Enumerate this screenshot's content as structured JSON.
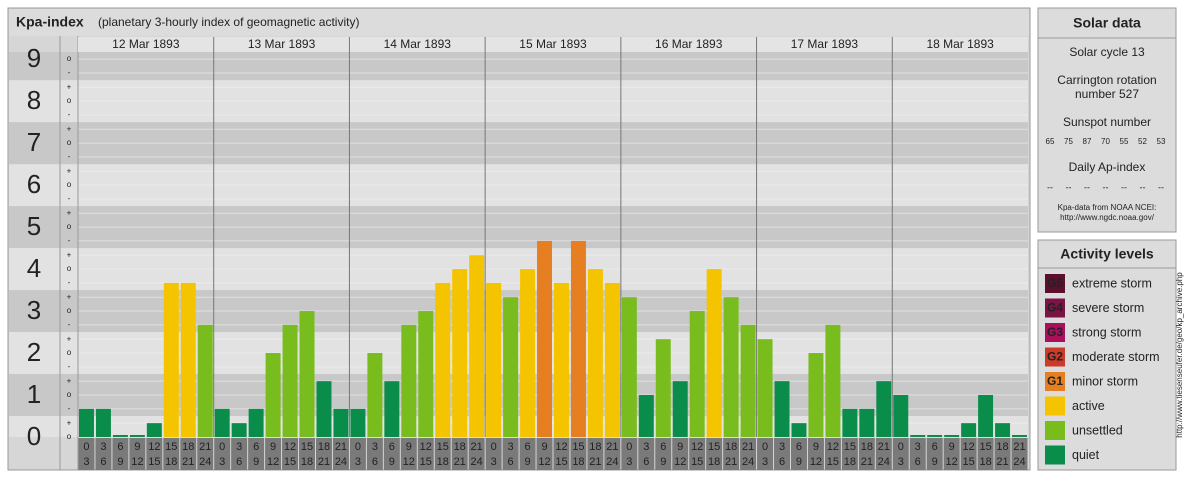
{
  "header": {
    "title": "Kpa-index",
    "subtitle": "(planetary 3-hourly index of geomagnetic activity)"
  },
  "chart_data": {
    "type": "bar",
    "days": [
      "12 Mar 1893",
      "13 Mar 1893",
      "14 Mar 1893",
      "15 Mar 1893",
      "16 Mar 1893",
      "17 Mar 1893",
      "18 Mar 1893"
    ],
    "hours": [
      [
        "0",
        "3"
      ],
      [
        "3",
        "6"
      ],
      [
        "6",
        "9"
      ],
      [
        "9",
        "12"
      ],
      [
        "12",
        "15"
      ],
      [
        "15",
        "18"
      ],
      [
        "18",
        "21"
      ],
      [
        "21",
        "24"
      ]
    ],
    "values": [
      0.67,
      0.67,
      0,
      0,
      0.33,
      3.67,
      3.67,
      2.67,
      0.67,
      0.33,
      0.67,
      2,
      2.67,
      3,
      1.33,
      0.67,
      0.67,
      2,
      1.33,
      2.67,
      3,
      3.67,
      4,
      4.33,
      3.67,
      3.33,
      4,
      4.67,
      3.67,
      4.67,
      4,
      3.67,
      3.33,
      1,
      2.33,
      1.33,
      3,
      4,
      3.33,
      2.67,
      2.33,
      1.33,
      0.33,
      2,
      2.67,
      0.67,
      0.67,
      1.33,
      1,
      0,
      0,
      0,
      0.33,
      1,
      0.33,
      0
    ],
    "colors": [
      "#0a8c4a",
      "#0a8c4a",
      "#0a8c4a",
      "#0a8c4a",
      "#0a8c4a",
      "#f5c400",
      "#f5c400",
      "#78bc1e",
      "#0a8c4a",
      "#0a8c4a",
      "#0a8c4a",
      "#78bc1e",
      "#78bc1e",
      "#78bc1e",
      "#0a8c4a",
      "#0a8c4a",
      "#0a8c4a",
      "#78bc1e",
      "#0a8c4a",
      "#78bc1e",
      "#78bc1e",
      "#f5c400",
      "#f5c400",
      "#f5c400",
      "#f5c400",
      "#78bc1e",
      "#f5c400",
      "#e67e22",
      "#f5c400",
      "#e67e22",
      "#f5c400",
      "#f5c400",
      "#78bc1e",
      "#0a8c4a",
      "#78bc1e",
      "#0a8c4a",
      "#78bc1e",
      "#f5c400",
      "#78bc1e",
      "#78bc1e",
      "#78bc1e",
      "#0a8c4a",
      "#0a8c4a",
      "#78bc1e",
      "#78bc1e",
      "#0a8c4a",
      "#0a8c4a",
      "#0a8c4a",
      "#0a8c4a",
      "#0a8c4a",
      "#0a8c4a",
      "#0a8c4a",
      "#0a8c4a",
      "#0a8c4a",
      "#0a8c4a",
      "#0a8c4a"
    ],
    "ylim": [
      0,
      9.17
    ],
    "yticks": [
      0,
      1,
      2,
      3,
      4,
      5,
      6,
      7,
      8,
      9
    ],
    "minor_yticks": [
      {
        "value": 0,
        "label": "o"
      },
      {
        "value": 0.33,
        "label": "+"
      },
      {
        "value": 0.67,
        "label": "-"
      },
      {
        "value": 1,
        "label": "o"
      },
      {
        "value": 1.33,
        "label": "+"
      },
      {
        "value": 1.67,
        "label": "-"
      },
      {
        "value": 2,
        "label": "o"
      },
      {
        "value": 2.33,
        "label": "+"
      },
      {
        "value": 2.67,
        "label": "-"
      },
      {
        "value": 3,
        "label": "o"
      },
      {
        "value": 3.33,
        "label": "+"
      },
      {
        "value": 3.67,
        "label": "-"
      },
      {
        "value": 4,
        "label": "o"
      },
      {
        "value": 4.33,
        "label": "+"
      },
      {
        "value": 4.67,
        "label": "-"
      },
      {
        "value": 5,
        "label": "o"
      },
      {
        "value": 5.33,
        "label": "+"
      },
      {
        "value": 5.67,
        "label": "-"
      },
      {
        "value": 6,
        "label": "o"
      },
      {
        "value": 6.33,
        "label": "+"
      },
      {
        "value": 6.67,
        "label": "-"
      },
      {
        "value": 7,
        "label": "o"
      },
      {
        "value": 7.33,
        "label": "+"
      },
      {
        "value": 7.67,
        "label": "-"
      },
      {
        "value": 8,
        "label": "o"
      },
      {
        "value": 8.33,
        "label": "+"
      },
      {
        "value": 8.67,
        "label": "-"
      },
      {
        "value": 9,
        "label": "o"
      }
    ]
  },
  "solar": {
    "title": "Solar data",
    "cycle": "Solar cycle 13",
    "carrington": [
      "Carrington rotation",
      "number 527"
    ],
    "sunspot_title": "Sunspot number",
    "sunspot_numbers": [
      65,
      75,
      87,
      70,
      55,
      52,
      53
    ],
    "ap_title": "Daily Ap-index",
    "ap_values": [
      "--",
      "--",
      "--",
      "--",
      "--",
      "--",
      "--"
    ],
    "source": [
      "Kpa-data from NOAA NCEI:",
      "http://www.ngdc.noaa.gov/"
    ]
  },
  "activity": {
    "title": "Activity levels",
    "levels": [
      {
        "badge": "G5",
        "label": "extreme storm",
        "color": "#5a0f2d"
      },
      {
        "badge": "G4",
        "label": "severe storm",
        "color": "#7a1444"
      },
      {
        "badge": "G3",
        "label": "strong storm",
        "color": "#a8105c"
      },
      {
        "badge": "G2",
        "label": "moderate storm",
        "color": "#cc3a2a"
      },
      {
        "badge": "G1",
        "label": "minor storm",
        "color": "#e67e22"
      },
      {
        "label": "active",
        "color": "#f5c400"
      },
      {
        "label": "unsettled",
        "color": "#78bc1e"
      },
      {
        "label": "quiet",
        "color": "#0a8c4a"
      }
    ]
  },
  "credit": "http://www.tiesenseufer.de/geo/kp_archive.php"
}
